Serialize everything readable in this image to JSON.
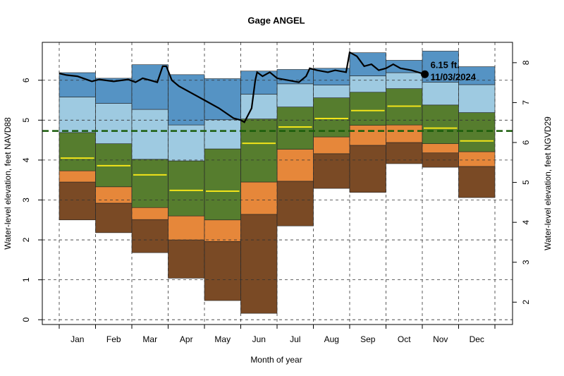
{
  "chart_data": {
    "type": "percentile_band",
    "title": "Gage ANGEL",
    "x_label": "Month of year",
    "y_label": "Water-level elevation, feet NAVD88",
    "y2_label": "Water-level elevation, feet NGVD29",
    "categories": [
      "Jan",
      "Feb",
      "Mar",
      "Apr",
      "May",
      "Jun",
      "Jul",
      "Aug",
      "Sep",
      "Oct",
      "Nov",
      "Dec"
    ],
    "levels": [
      [
        2.5,
        2.18,
        1.68,
        1.04,
        0.48,
        0.16,
        2.35,
        3.29,
        3.19,
        3.91,
        3.82,
        3.06
      ],
      [
        3.45,
        2.92,
        2.51,
        2.0,
        1.96,
        2.64,
        3.47,
        4.16,
        4.37,
        4.44,
        4.18,
        3.84
      ],
      [
        3.73,
        3.33,
        2.81,
        2.6,
        2.5,
        3.45,
        4.27,
        4.58,
        4.87,
        4.88,
        4.41,
        4.21
      ],
      [
        4.69,
        4.41,
        4.02,
        3.98,
        4.28,
        5.03,
        5.33,
        5.56,
        5.7,
        5.79,
        5.38,
        5.19
      ],
      [
        5.58,
        5.42,
        5.27,
        4.88,
        5.01,
        5.65,
        5.91,
        5.88,
        6.11,
        6.19,
        5.95,
        5.89
      ],
      [
        6.19,
        6.05,
        6.39,
        6.14,
        6.04,
        6.23,
        6.27,
        6.3,
        6.69,
        6.5,
        6.73,
        6.34
      ]
    ],
    "band_colors": [
      "#7a4a25",
      "#e6873a",
      "#567d2e",
      "#9ecae1",
      "#5593c4"
    ],
    "median": {
      "color": "#f2e41a",
      "values": [
        4.05,
        3.86,
        3.63,
        3.24,
        3.22,
        4.42,
        4.83,
        5.04,
        5.24,
        5.35,
        4.8,
        4.48
      ]
    },
    "reference_line": {
      "value": 4.73,
      "color": "#1a5c0a"
    },
    "current": {
      "color": "#000000",
      "x": [
        0.0,
        0.2,
        0.5,
        0.9,
        1.1,
        1.5,
        1.9,
        2.1,
        2.3,
        2.5,
        2.7,
        2.85,
        2.95,
        3.1,
        3.3,
        3.6,
        4.0,
        4.4,
        4.8,
        5.0,
        5.1,
        5.3,
        5.4,
        5.45,
        5.6,
        5.8,
        6.0,
        6.3,
        6.6,
        6.8,
        6.9,
        7.1,
        7.4,
        7.6,
        7.9,
        8.0,
        8.2,
        8.4,
        8.6,
        8.8,
        9.0,
        9.2,
        9.4,
        9.7,
        10.07
      ],
      "values": [
        6.17,
        6.13,
        6.1,
        5.97,
        6.02,
        5.97,
        6.02,
        5.95,
        6.05,
        6.0,
        5.95,
        6.35,
        6.35,
        6.0,
        5.85,
        5.7,
        5.5,
        5.3,
        5.05,
        5.0,
        4.95,
        5.3,
        6.0,
        6.2,
        6.1,
        6.2,
        6.05,
        6.0,
        5.95,
        6.1,
        6.3,
        6.25,
        6.2,
        6.25,
        6.2,
        6.7,
        6.6,
        6.35,
        6.4,
        6.25,
        6.3,
        6.4,
        6.3,
        6.25,
        6.15
      ]
    },
    "latest": {
      "x": 10.07,
      "value": 6.15,
      "value_label": "6.15 ft.",
      "date": "11/03/2024"
    },
    "ylim": [
      -0.12,
      6.95
    ],
    "yticks": [
      0,
      1,
      2,
      3,
      4,
      5,
      6
    ],
    "y2lim": [
      1.44,
      8.51
    ],
    "y2ticks": [
      2,
      3,
      4,
      5,
      6,
      7,
      8
    ],
    "grid": true
  }
}
